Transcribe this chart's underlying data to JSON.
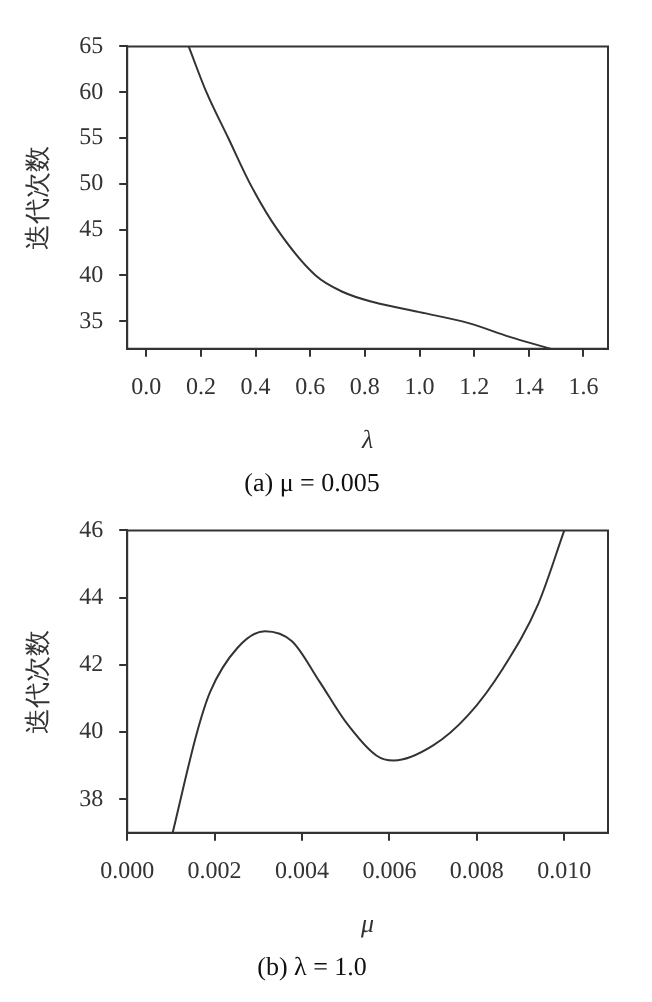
{
  "chart_data": [
    {
      "type": "line",
      "title": "(a) μ = 0.005",
      "xlabel": "λ",
      "ylabel": "迭代次数",
      "xlim": [
        -0.07,
        1.69
      ],
      "ylim": [
        32,
        65
      ],
      "xticks": [
        {
          "value": 0,
          "label": "0.0"
        },
        {
          "value": 0.2,
          "label": "0.2"
        },
        {
          "value": 0.4,
          "label": "0.4"
        },
        {
          "value": 0.6,
          "label": "0.6"
        },
        {
          "value": 0.8,
          "label": "0.8"
        },
        {
          "value": 1,
          "label": "1.0"
        },
        {
          "value": 1.2,
          "label": "1.2"
        },
        {
          "value": 1.4,
          "label": "1.4"
        },
        {
          "value": 1.6,
          "label": "1.6"
        }
      ],
      "yticks": [
        35,
        40,
        45,
        50,
        55,
        60,
        65
      ],
      "grid": false,
      "legend": false,
      "marker": "none",
      "line_style": "solid",
      "series": [
        {
          "color": "#333333",
          "x": [
            0.155,
            0.22,
            0.3,
            0.38,
            0.48,
            0.62,
            0.72,
            0.83,
            1.0,
            1.18,
            1.33,
            1.48
          ],
          "values": [
            65,
            60,
            55,
            50,
            45,
            40,
            38.2,
            37.1,
            36.0,
            34.8,
            33.3,
            32.0
          ]
        }
      ]
    },
    {
      "type": "line",
      "title": "(b) λ = 1.0",
      "xlabel": "μ",
      "ylabel": "迭代次数",
      "xlim": [
        0,
        0.011
      ],
      "ylim": [
        37,
        46
      ],
      "xticks": [
        {
          "value": 0,
          "label": "0.000"
        },
        {
          "value": 0.002,
          "label": "0.002"
        },
        {
          "value": 0.004,
          "label": "0.004"
        },
        {
          "value": 0.006,
          "label": "0.006"
        },
        {
          "value": 0.008,
          "label": "0.008"
        },
        {
          "value": 0.01,
          "label": "0.010"
        }
      ],
      "yticks": [
        38,
        40,
        42,
        44,
        46
      ],
      "grid": false,
      "legend": false,
      "marker": "none",
      "line_style": "solid",
      "series": [
        {
          "color": "#333333",
          "x": [
            0.00104,
            0.0016,
            0.0019,
            0.00252,
            0.00315,
            0.00377,
            0.0044,
            0.005,
            0.0057,
            0.0061,
            0.007,
            0.0078,
            0.0086,
            0.0094,
            0.01
          ],
          "values": [
            37,
            40,
            41.2,
            42.5,
            43,
            42.7,
            41.5,
            40.3,
            39.3,
            39.15,
            39.6,
            40.5,
            41.9,
            43.8,
            46
          ]
        }
      ]
    }
  ]
}
